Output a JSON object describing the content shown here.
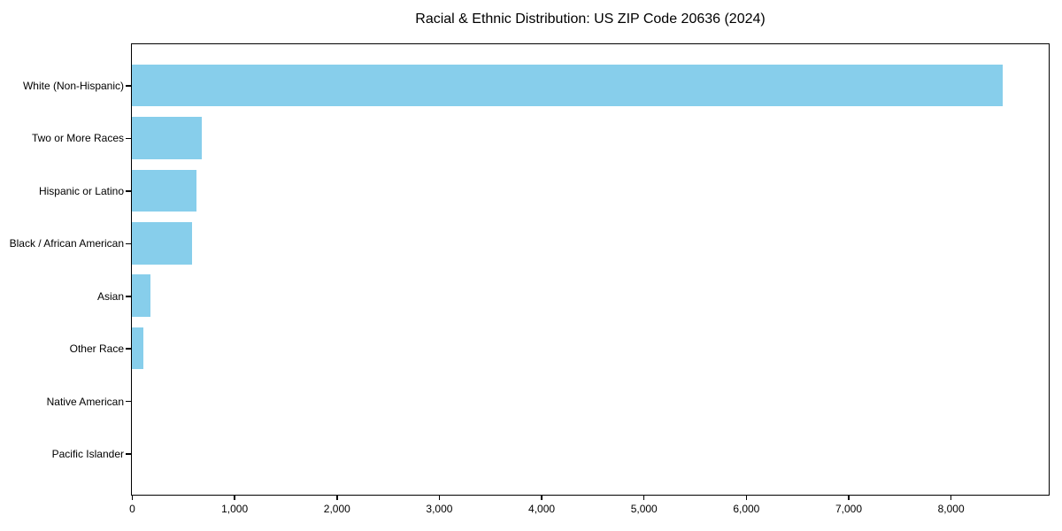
{
  "figure": {
    "title": "Racial & Ethnic Distribution: US ZIP Code 20636 (2024)"
  },
  "chart_data": {
    "type": "bar",
    "orientation": "horizontal",
    "title": "Racial & Ethnic Distribution: US ZIP Code 20636 (2024)",
    "categories": [
      "White (Non-Hispanic)",
      "Two or More Races",
      "Hispanic or Latino",
      "Black / African American",
      "Asian",
      "Other Race",
      "Native American",
      "Pacific Islander"
    ],
    "values": [
      8510,
      680,
      630,
      585,
      180,
      110,
      0,
      0
    ],
    "xlabel": "",
    "ylabel": "",
    "xlim": [
      0,
      8950
    ],
    "xticks": [
      0,
      1000,
      2000,
      3000,
      4000,
      5000,
      6000,
      7000,
      8000
    ],
    "xtick_labels": [
      "0",
      "1,000",
      "2,000",
      "3,000",
      "4,000",
      "5,000",
      "6,000",
      "7,000",
      "8,000"
    ],
    "grid": false,
    "legend": false,
    "bar_color": "#87CEEB",
    "axis_color": "#000000",
    "text_color": "#000000",
    "background_color": "#FFFFFF"
  }
}
